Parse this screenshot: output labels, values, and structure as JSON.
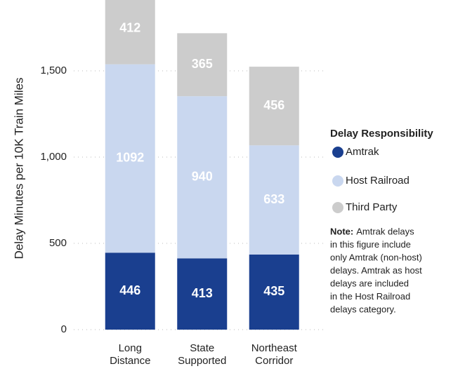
{
  "chart_data": {
    "type": "stacked_bar",
    "y_label": "Delay Minutes per 10K Train Miles",
    "categories": [
      "Long Distance",
      "State Supported",
      "Northeast Corridor"
    ],
    "series": [
      {
        "name": "Amtrak",
        "color": "#1a3f8f",
        "values": [
          446,
          413,
          435
        ]
      },
      {
        "name": "Host Railroad",
        "color": "#c9d7ef",
        "values": [
          1092,
          940,
          633
        ]
      },
      {
        "name": "Third Party",
        "color": "#cccccc",
        "values": [
          412,
          365,
          456
        ]
      }
    ],
    "ylim": [
      0,
      1900
    ],
    "yticks": [
      0,
      {
        "value": 500,
        "label": "500"
      },
      {
        "value": 1000,
        "label": "1,000"
      },
      {
        "value": 1500,
        "label": "1,500"
      }
    ],
    "grid": true,
    "legend_title": "Delay Responsibility",
    "note": {
      "label": "Note:",
      "lines": [
        "Amtrak delays",
        "in this figure include",
        "only Amtrak (non-host)",
        "delays. Amtrak as host",
        "delays are included",
        "in the Host Railroad",
        "delays category."
      ]
    }
  }
}
